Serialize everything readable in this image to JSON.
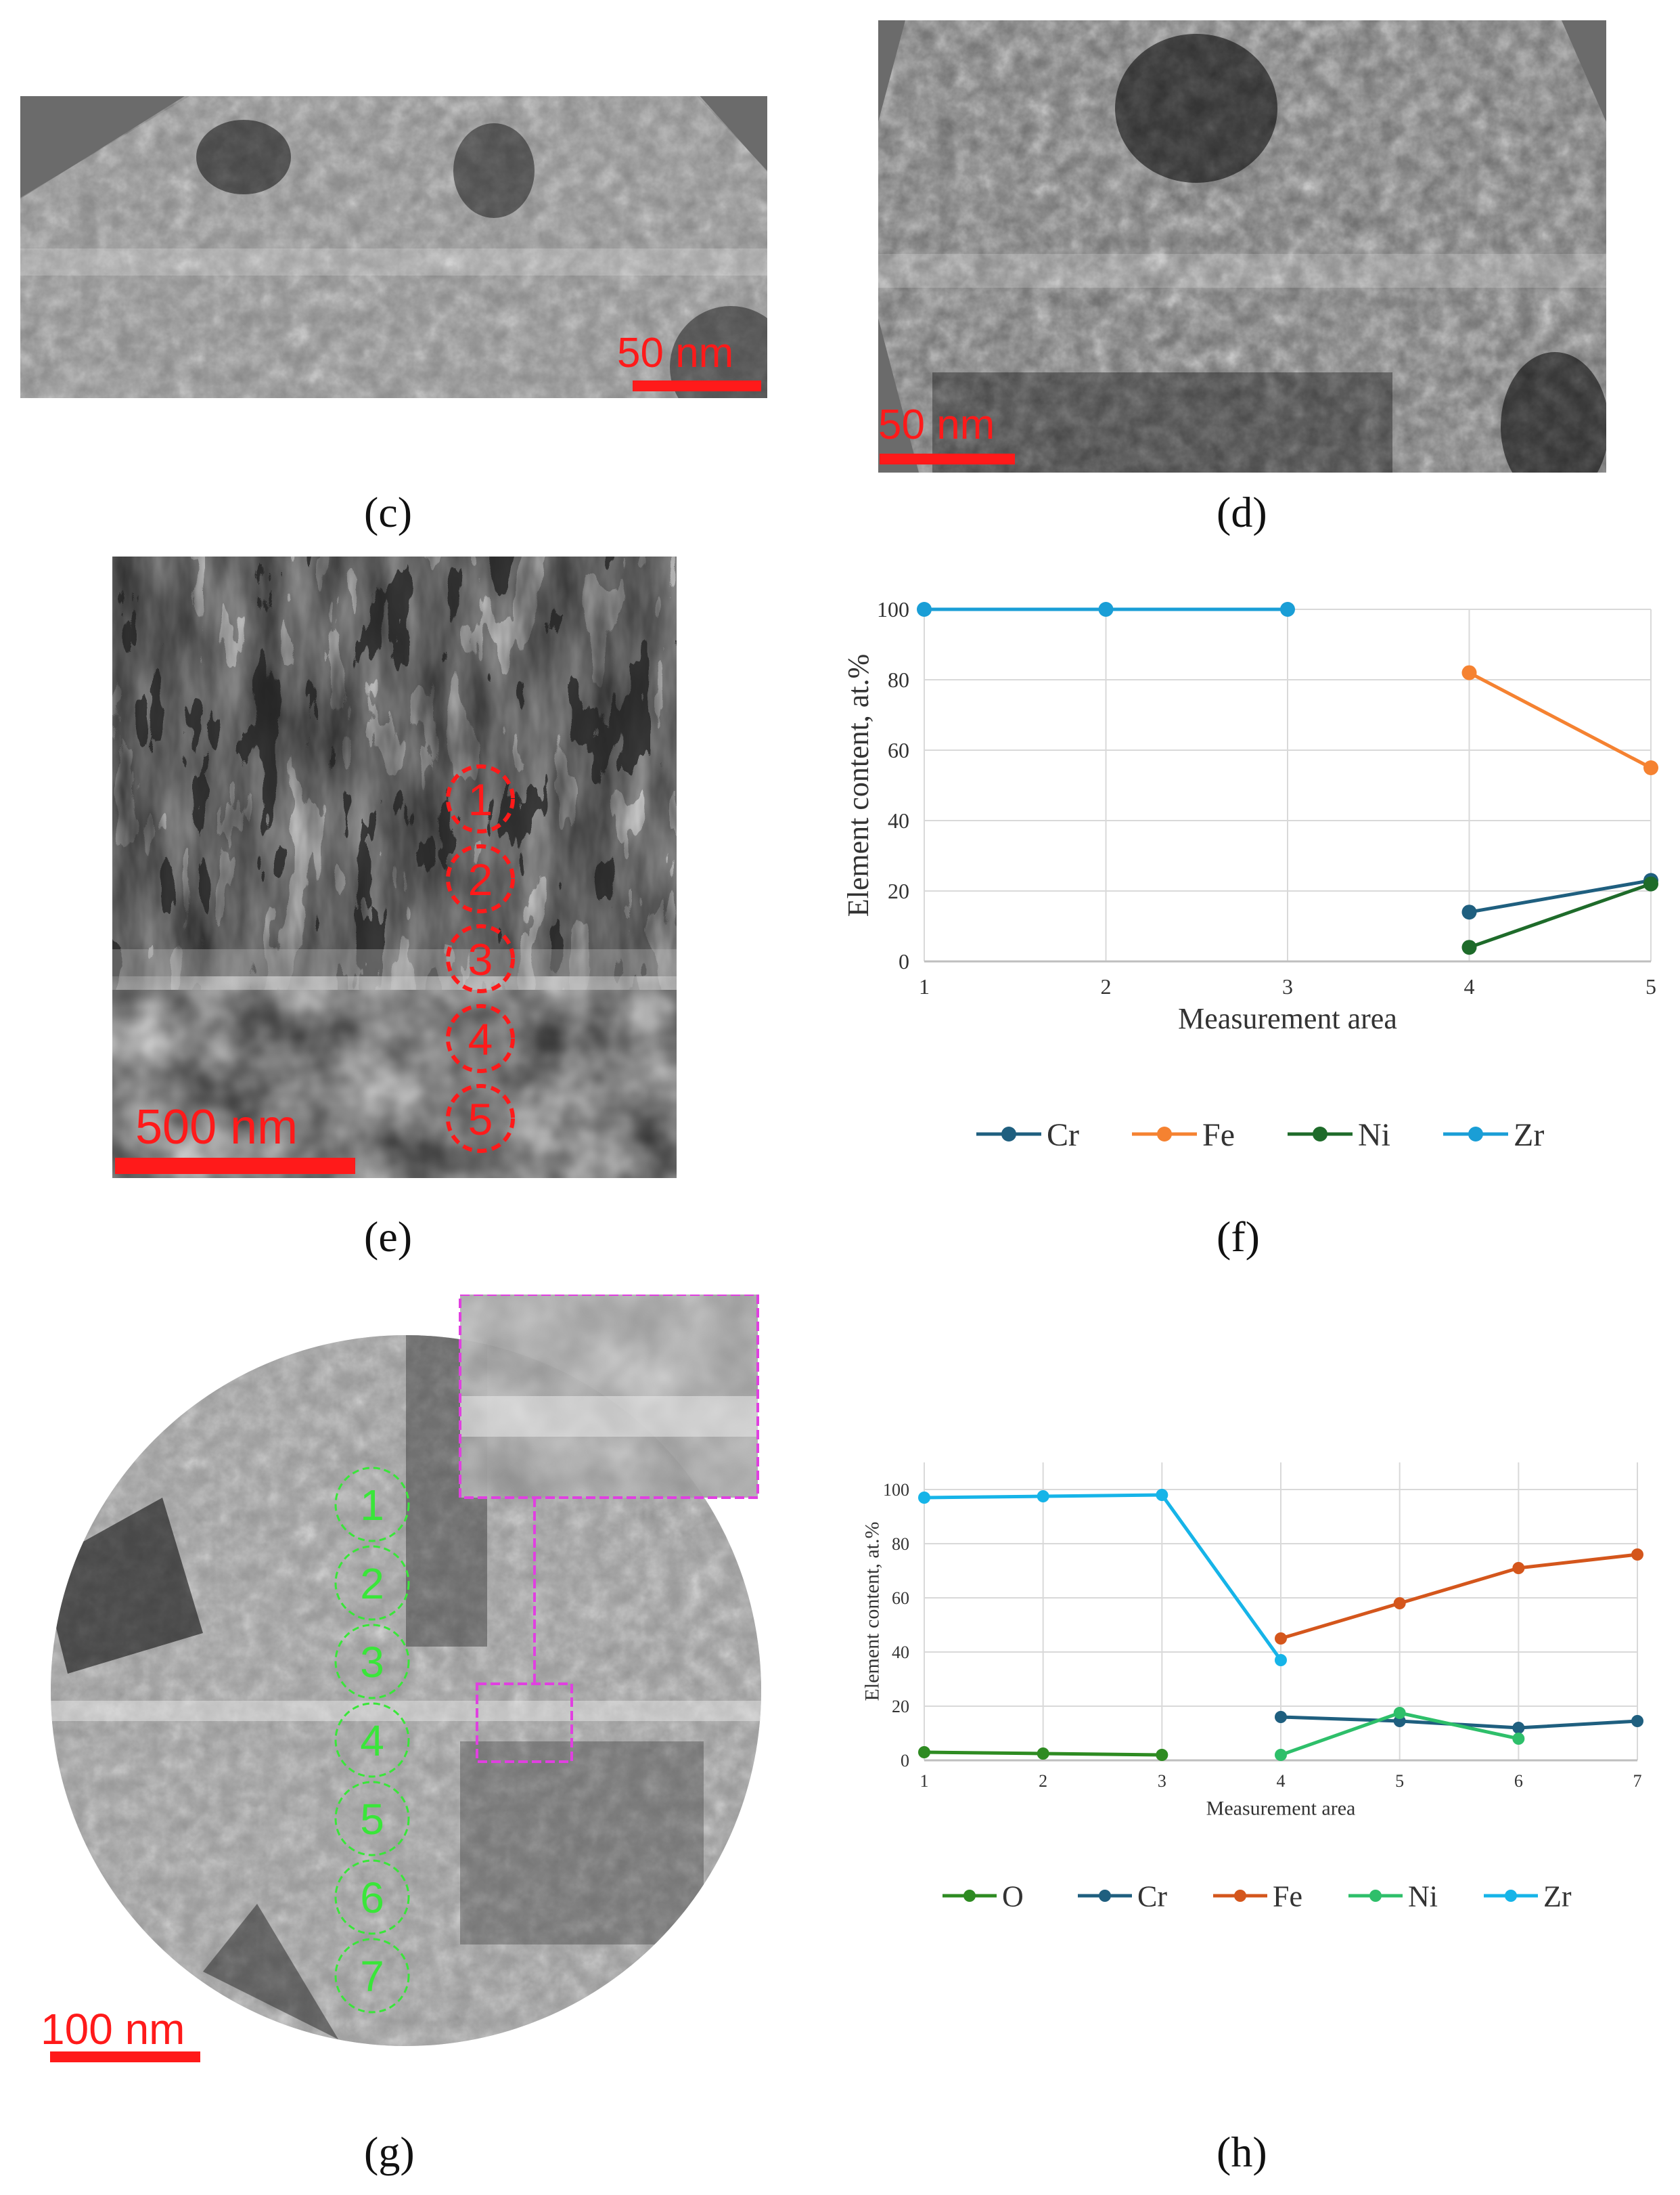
{
  "panels": {
    "c": {
      "caption": "(c)",
      "scale_label": "50 nm"
    },
    "d": {
      "caption": "(d)",
      "scale_label": "50 nm"
    },
    "e": {
      "caption": "(e)",
      "scale_label": "500 nm",
      "markers": [
        "1",
        "2",
        "3",
        "4",
        "5"
      ]
    },
    "f": {
      "caption": "(f)"
    },
    "g": {
      "caption": "(g)",
      "scale_label": "100 nm",
      "markers": [
        "1",
        "2",
        "3",
        "4",
        "5",
        "6",
        "7"
      ]
    },
    "h": {
      "caption": "(h)"
    }
  },
  "chart_data": [
    {
      "panel": "f",
      "type": "line",
      "xlabel": "Measurement area",
      "ylabel": "Element content, at.%",
      "xlim": [
        1,
        5
      ],
      "ylim": [
        0,
        100
      ],
      "x_ticks": [
        1,
        2,
        3,
        4,
        5
      ],
      "y_ticks": [
        0,
        20,
        40,
        60,
        80,
        100
      ],
      "grid": true,
      "legend": "bottom",
      "series": [
        {
          "name": "Cr",
          "color": "#1f5f7f",
          "points": [
            [
              4,
              14
            ],
            [
              5,
              23
            ]
          ]
        },
        {
          "name": "Fe",
          "color": "#f58231",
          "points": [
            [
              4,
              82
            ],
            [
              5,
              55
            ]
          ]
        },
        {
          "name": "Ni",
          "color": "#1e6b2a",
          "points": [
            [
              4,
              4
            ],
            [
              5,
              22
            ]
          ]
        },
        {
          "name": "Zr",
          "color": "#1a9ed6",
          "points": [
            [
              1,
              100
            ],
            [
              2,
              100
            ],
            [
              3,
              100
            ]
          ]
        }
      ]
    },
    {
      "panel": "h",
      "type": "line",
      "xlabel": "Measurement area",
      "ylabel": "Element content, at.%",
      "xlim": [
        1,
        7
      ],
      "ylim": [
        0,
        110
      ],
      "x_ticks": [
        1,
        2,
        3,
        4,
        5,
        6,
        7
      ],
      "y_ticks": [
        0,
        20,
        40,
        60,
        80,
        100
      ],
      "grid": true,
      "legend": "bottom",
      "series": [
        {
          "name": "O",
          "color": "#2e8b22",
          "points": [
            [
              1,
              3
            ],
            [
              2,
              2.5
            ],
            [
              3,
              2
            ]
          ]
        },
        {
          "name": "Cr",
          "color": "#1f5f7f",
          "points": [
            [
              4,
              16
            ],
            [
              5,
              14.5
            ],
            [
              6,
              12
            ],
            [
              7,
              14.5
            ]
          ]
        },
        {
          "name": "Fe",
          "color": "#d4561c",
          "points": [
            [
              4,
              45
            ],
            [
              5,
              58
            ],
            [
              6,
              71
            ],
            [
              7,
              76
            ]
          ]
        },
        {
          "name": "Ni",
          "color": "#2ebf6a",
          "points": [
            [
              4,
              2
            ],
            [
              5,
              17.5
            ],
            [
              6,
              8
            ]
          ]
        },
        {
          "name": "Zr",
          "color": "#16b4e8",
          "points": [
            [
              1,
              97
            ],
            [
              2,
              97.5
            ],
            [
              3,
              98
            ],
            [
              4,
              37
            ]
          ]
        }
      ]
    }
  ]
}
